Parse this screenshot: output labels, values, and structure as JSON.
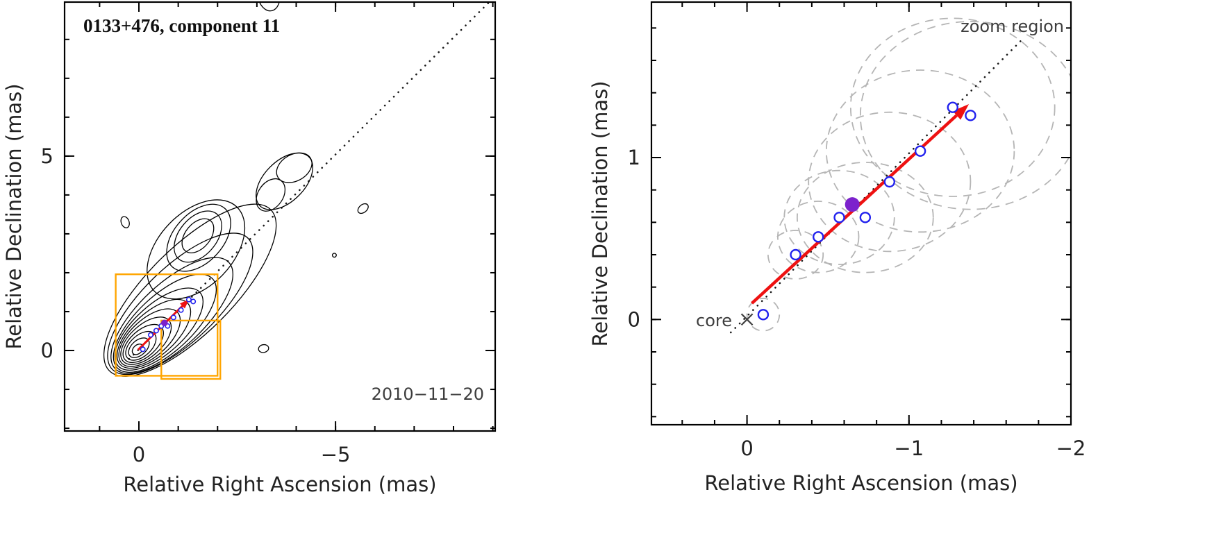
{
  "style": {
    "contour": "#000000",
    "dotted": "#1a1a1a",
    "dash_gray": "#b5b5b5",
    "blue": "#2222ee",
    "purple": "#7c22cc",
    "red": "#ee1111",
    "orange": "#ffa500",
    "frame": "#000000",
    "cross": "#444444"
  },
  "chart_data": [
    {
      "type": "contour",
      "title": "0133+476, component 11",
      "date_label": "2010−11−20",
      "xlabel": "Relative Right Ascension (mas)",
      "ylabel": "Relative Declination (mas)",
      "xlim": [
        1.89,
        -9.06
      ],
      "ylim": [
        -2.07,
        8.96
      ],
      "xticks": [
        {
          "v": 0,
          "label": "0"
        },
        {
          "v": -5,
          "label": "−5"
        }
      ],
      "yticks": [
        {
          "v": 0,
          "label": "0"
        },
        {
          "v": 5,
          "label": "5"
        }
      ],
      "xminor": 1,
      "yminor": 1,
      "dotted_line": {
        "x1": 0.25,
        "y1": -0.22,
        "x2": -8.9,
        "y2": 8.95
      },
      "contours": [
        {
          "x": 0.03,
          "y": 0.03,
          "rx": 0.16,
          "ry": 0.11,
          "rot": -42
        },
        {
          "x": 0.0,
          "y": 0.07,
          "rx": 0.31,
          "ry": 0.19,
          "rot": -42
        },
        {
          "x": -0.05,
          "y": 0.12,
          "rx": 0.46,
          "ry": 0.27,
          "rot": -42
        },
        {
          "x": -0.11,
          "y": 0.18,
          "rx": 0.62,
          "ry": 0.34,
          "rot": -42
        },
        {
          "x": -0.18,
          "y": 0.25,
          "rx": 0.78,
          "ry": 0.41,
          "rot": -42
        },
        {
          "x": -0.27,
          "y": 0.33,
          "rx": 0.96,
          "ry": 0.48,
          "rot": -42
        },
        {
          "x": -0.38,
          "y": 0.43,
          "rx": 1.16,
          "ry": 0.55,
          "rot": -42
        },
        {
          "x": -0.51,
          "y": 0.55,
          "rx": 1.4,
          "ry": 0.63,
          "rot": -42
        },
        {
          "x": -0.66,
          "y": 0.7,
          "rx": 1.66,
          "ry": 0.72,
          "rot": -43
        },
        {
          "x": -0.84,
          "y": 0.9,
          "rx": 1.98,
          "ry": 0.82,
          "rot": -43
        },
        {
          "x": -1.05,
          "y": 1.2,
          "rx": 2.4,
          "ry": 0.95,
          "rot": -44
        },
        {
          "x": -1.3,
          "y": 1.55,
          "rx": 2.9,
          "ry": 1.1,
          "rot": -45
        },
        {
          "x": -1.5,
          "y": 2.95,
          "rx": 0.5,
          "ry": 0.32,
          "rot": -50
        },
        {
          "x": -1.5,
          "y": 2.93,
          "rx": 0.75,
          "ry": 0.48,
          "rot": -50
        },
        {
          "x": -1.52,
          "y": 2.9,
          "rx": 1.0,
          "ry": 0.63,
          "rot": -48
        },
        {
          "x": -1.45,
          "y": 2.6,
          "rx": 1.5,
          "ry": 0.95,
          "rot": -46
        },
        {
          "x": -3.35,
          "y": 4.0,
          "rx": 0.45,
          "ry": 0.32,
          "rot": -55
        },
        {
          "x": -3.95,
          "y": 4.7,
          "rx": 0.48,
          "ry": 0.34,
          "rot": -30
        },
        {
          "x": -3.7,
          "y": 4.35,
          "rx": 0.88,
          "ry": 0.52,
          "rot": -45
        },
        {
          "x": 0.35,
          "y": 3.3,
          "rx": 0.1,
          "ry": 0.15,
          "rot": -20
        },
        {
          "x": -5.7,
          "y": 3.65,
          "rx": 0.15,
          "ry": 0.1,
          "rot": -40
        },
        {
          "x": -3.17,
          "y": 0.05,
          "rx": 0.13,
          "ry": 0.1,
          "rot": -10
        },
        {
          "x": -4.97,
          "y": 2.45,
          "rx": 0.05,
          "ry": 0.05,
          "rot": 0
        },
        {
          "x": -3.3,
          "y": 9.15,
          "rx": 0.28,
          "ry": 0.42,
          "rot": -10
        }
      ],
      "zoom_boxes": [
        {
          "x1": 0.59,
          "y1": -0.65,
          "x2": -2.0,
          "y2": 1.96
        },
        {
          "x1": -0.57,
          "y1": -0.73,
          "x2": -2.07,
          "y2": 0.77
        }
      ],
      "arrow": {
        "x1": 0.02,
        "y1": 0.02,
        "x2": -1.28,
        "y2": 1.32
      },
      "points": [
        {
          "x": -0.1,
          "y": 0.03,
          "type": "open"
        },
        {
          "x": -0.3,
          "y": 0.4,
          "type": "open"
        },
        {
          "x": -0.44,
          "y": 0.51,
          "type": "open"
        },
        {
          "x": -0.57,
          "y": 0.63,
          "type": "open"
        },
        {
          "x": -0.73,
          "y": 0.63,
          "type": "open"
        },
        {
          "x": -0.65,
          "y": 0.71,
          "type": "filled"
        },
        {
          "x": -0.88,
          "y": 0.85,
          "type": "open"
        },
        {
          "x": -1.07,
          "y": 1.04,
          "type": "open"
        },
        {
          "x": -1.27,
          "y": 1.31,
          "type": "open"
        },
        {
          "x": -1.38,
          "y": 1.26,
          "type": "open"
        }
      ]
    },
    {
      "type": "scatter",
      "annotation": "zoom region",
      "core_label": "core",
      "xlabel": "Relative Right Ascension (mas)",
      "ylabel": "Relative Declination (mas)",
      "xlim": [
        0.59,
        -2.0
      ],
      "ylim": [
        -0.65,
        1.96
      ],
      "xticks": [
        {
          "v": 0,
          "label": "0"
        },
        {
          "v": -1,
          "label": "−1"
        },
        {
          "v": -2,
          "label": "−2"
        }
      ],
      "yticks": [
        {
          "v": 0,
          "label": "0"
        },
        {
          "v": 1,
          "label": "1"
        }
      ],
      "xminor": 0.2,
      "yminor": 0.2,
      "dotted_line": {
        "x1": 0.1,
        "y1": -0.08,
        "x2": -1.7,
        "y2": 1.73
      },
      "arrow": {
        "x1": -0.03,
        "y1": 0.1,
        "x2": -1.37,
        "y2": 1.33
      },
      "core": {
        "x": 0,
        "y": 0
      },
      "beam_ellipses": [
        {
          "x": -0.1,
          "y": 0.03,
          "rx": 0.1,
          "ry": 0.1
        },
        {
          "x": -0.3,
          "y": 0.4,
          "rx": 0.17,
          "ry": 0.15
        },
        {
          "x": -0.44,
          "y": 0.51,
          "rx": 0.25,
          "ry": 0.22
        },
        {
          "x": -0.57,
          "y": 0.63,
          "rx": 0.34,
          "ry": 0.29
        },
        {
          "x": -0.73,
          "y": 0.63,
          "rx": 0.42,
          "ry": 0.34
        },
        {
          "x": -0.88,
          "y": 0.85,
          "rx": 0.5,
          "ry": 0.43
        },
        {
          "x": -1.07,
          "y": 1.04,
          "rx": 0.58,
          "ry": 0.5
        },
        {
          "x": -1.27,
          "y": 1.31,
          "rx": 0.63,
          "ry": 0.55
        },
        {
          "x": -1.38,
          "y": 1.26,
          "rx": 0.68,
          "ry": 0.58
        }
      ],
      "points": [
        {
          "x": -0.1,
          "y": 0.03,
          "type": "open"
        },
        {
          "x": -0.3,
          "y": 0.4,
          "type": "open"
        },
        {
          "x": -0.44,
          "y": 0.51,
          "type": "open"
        },
        {
          "x": -0.57,
          "y": 0.63,
          "type": "open"
        },
        {
          "x": -0.73,
          "y": 0.63,
          "type": "open"
        },
        {
          "x": -0.65,
          "y": 0.71,
          "type": "filled"
        },
        {
          "x": -0.88,
          "y": 0.85,
          "type": "open"
        },
        {
          "x": -1.07,
          "y": 1.04,
          "type": "open"
        },
        {
          "x": -1.27,
          "y": 1.31,
          "type": "open"
        },
        {
          "x": -1.38,
          "y": 1.26,
          "type": "open"
        }
      ]
    }
  ]
}
